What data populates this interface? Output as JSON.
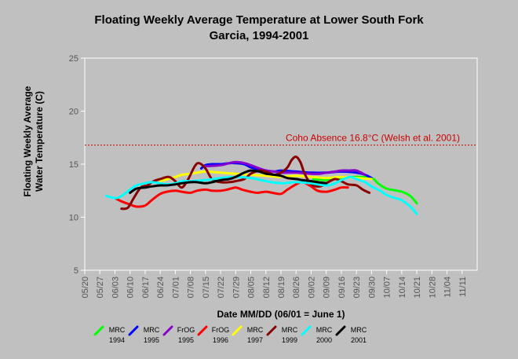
{
  "chart_data": {
    "type": "line",
    "title_line1": "Floating Weekly Average Temperature at Lower South Fork",
    "title_line2": "Garcia, 1994-2001",
    "ylabel_line1": "Floating Weekly Average",
    "ylabel_line2": "Water Temperature (C)",
    "xlabel": "Date MM/DD (06/01 = June 1)",
    "ylim": [
      5,
      25
    ],
    "yticks": [
      5,
      10,
      15,
      20,
      25
    ],
    "xlim": [
      -12,
      170
    ],
    "xticks": [
      {
        "label": "05/20",
        "day": -12
      },
      {
        "label": "05/27",
        "day": -5
      },
      {
        "label": "06/03",
        "day": 2
      },
      {
        "label": "06/10",
        "day": 9
      },
      {
        "label": "06/17",
        "day": 16
      },
      {
        "label": "06/24",
        "day": 23
      },
      {
        "label": "07/01",
        "day": 30
      },
      {
        "label": "07/08",
        "day": 37
      },
      {
        "label": "07/15",
        "day": 44
      },
      {
        "label": "07/22",
        "day": 51
      },
      {
        "label": "07/29",
        "day": 58
      },
      {
        "label": "08/05",
        "day": 65
      },
      {
        "label": "08/12",
        "day": 72
      },
      {
        "label": "08/19",
        "day": 79
      },
      {
        "label": "08/26",
        "day": 86
      },
      {
        "label": "09/02",
        "day": 93
      },
      {
        "label": "09/09",
        "day": 100
      },
      {
        "label": "09/16",
        "day": 107
      },
      {
        "label": "09/23",
        "day": 114
      },
      {
        "label": "09/30",
        "day": 121
      },
      {
        "label": "10/07",
        "day": 128
      },
      {
        "label": "10/14",
        "day": 135
      },
      {
        "label": "10/21",
        "day": 142
      },
      {
        "label": "10/28",
        "day": 149
      },
      {
        "label": "11/04",
        "day": 156
      },
      {
        "label": "11/11",
        "day": 163
      }
    ],
    "reference_line": {
      "value": 16.8,
      "label": "Coho Absence 16.8°C (Welsh et al. 2001)",
      "color": "#cc0000"
    },
    "series": [
      {
        "name": "MRC",
        "year": "1994",
        "color": "#00ff00",
        "x": [
          94,
          100,
          107,
          114,
          121,
          124,
          128,
          135,
          139,
          142
        ],
        "y": [
          13.6,
          13.5,
          13.7,
          13.8,
          13.7,
          13.2,
          12.7,
          12.4,
          12.0,
          11.3
        ]
      },
      {
        "name": "MRC",
        "year": "1995",
        "color": "#0000ff",
        "x": [
          42,
          44,
          47,
          51,
          55,
          58,
          62,
          65,
          69,
          72,
          76,
          79,
          86,
          93,
          100,
          107,
          114,
          118,
          121
        ],
        "y": [
          14.6,
          14.9,
          15.0,
          15.0,
          15.1,
          15.1,
          15.0,
          14.7,
          14.5,
          14.4,
          14.3,
          14.4,
          14.3,
          14.2,
          14.2,
          14.3,
          14.2,
          14.0,
          13.7
        ]
      },
      {
        "name": "FrOG",
        "year": "1995",
        "color": "#8800cc",
        "x": [
          44,
          51,
          55,
          58,
          62,
          65,
          69,
          72,
          76,
          79,
          86,
          93,
          97,
          100,
          104,
          107,
          111,
          114,
          118
        ],
        "y": [
          14.8,
          14.9,
          15.1,
          15.2,
          15.1,
          14.9,
          14.6,
          14.4,
          14.3,
          14.2,
          14.2,
          14.1,
          14.1,
          14.2,
          14.3,
          14.4,
          14.4,
          14.4,
          14.0
        ]
      },
      {
        "name": "FrOG",
        "year": "1996",
        "color": "#ff0000",
        "x": [
          2,
          5,
          9,
          12,
          16,
          19,
          23,
          26,
          30,
          33,
          37,
          40,
          44,
          47,
          51,
          54,
          58,
          61,
          65,
          68,
          72,
          75,
          79,
          82,
          86,
          89,
          93,
          96,
          100,
          104,
          107,
          110
        ],
        "y": [
          11.8,
          11.5,
          11.2,
          11.0,
          11.1,
          11.6,
          12.2,
          12.4,
          12.5,
          12.4,
          12.3,
          12.5,
          12.6,
          12.5,
          12.5,
          12.6,
          12.8,
          12.6,
          12.4,
          12.3,
          12.4,
          12.3,
          12.2,
          12.6,
          13.1,
          13.3,
          12.9,
          12.5,
          12.4,
          12.6,
          12.8,
          12.8
        ]
      },
      {
        "name": "MRC",
        "year": "1997",
        "color": "#ffff00",
        "x": [
          23,
          30,
          33,
          37,
          40,
          44,
          51,
          58,
          65,
          72,
          79,
          86,
          93,
          100,
          107,
          114,
          121
        ],
        "y": [
          13.4,
          13.8,
          14.0,
          14.1,
          14.2,
          14.3,
          14.2,
          14.1,
          14.0,
          13.9,
          13.8,
          13.9,
          13.8,
          13.7,
          13.8,
          13.7,
          13.6
        ]
      },
      {
        "name": "MRC",
        "year": "1999",
        "color": "#880000",
        "x": [
          5,
          8,
          11,
          14,
          17,
          20,
          23,
          27,
          30,
          33,
          36,
          39,
          41,
          44,
          47,
          51,
          55,
          58,
          62,
          65,
          69,
          72,
          76,
          79,
          82,
          84,
          86,
          88,
          90,
          93,
          97,
          100,
          104,
          107,
          110,
          114,
          117,
          120
        ],
        "y": [
          10.8,
          10.9,
          11.9,
          12.8,
          13.0,
          13.4,
          13.6,
          13.8,
          13.4,
          12.8,
          13.6,
          14.8,
          15.1,
          14.6,
          13.6,
          13.3,
          13.3,
          13.4,
          13.6,
          14.1,
          14.4,
          14.3,
          14.0,
          14.2,
          14.7,
          15.4,
          15.7,
          15.2,
          14.1,
          13.1,
          12.9,
          13.2,
          13.6,
          13.4,
          13.1,
          13.0,
          12.6,
          12.3
        ]
      },
      {
        "name": "MRC",
        "year": "2000",
        "color": "#00ffff",
        "x": [
          -2,
          2,
          5,
          9,
          12,
          16,
          19,
          23,
          26,
          30,
          33,
          37,
          44,
          51,
          58,
          65,
          72,
          79,
          86,
          93,
          100,
          104,
          107,
          111,
          114,
          118,
          121,
          125,
          128,
          132,
          135,
          139,
          142
        ],
        "y": [
          12.0,
          11.8,
          12.0,
          12.6,
          13.0,
          13.2,
          13.3,
          13.2,
          13.1,
          13.2,
          13.4,
          13.4,
          13.5,
          13.7,
          13.8,
          13.7,
          13.4,
          13.2,
          13.3,
          13.2,
          13.0,
          13.2,
          13.5,
          13.8,
          13.6,
          13.3,
          12.9,
          12.5,
          12.1,
          11.8,
          11.6,
          11.0,
          10.3
        ]
      },
      {
        "name": "MRC",
        "year": "2001",
        "color": "#000000",
        "x": [
          9,
          12,
          16,
          19,
          23,
          26,
          30,
          33,
          37,
          40,
          44,
          47,
          51,
          55,
          58,
          62,
          65,
          69,
          72,
          76,
          79,
          82,
          86,
          89,
          93,
          96,
          100
        ],
        "y": [
          12.3,
          12.7,
          12.8,
          12.9,
          13.0,
          13.0,
          13.1,
          13.2,
          13.3,
          13.3,
          13.2,
          13.3,
          13.5,
          13.6,
          13.8,
          14.2,
          14.4,
          14.3,
          14.1,
          14.0,
          13.9,
          13.7,
          13.6,
          13.5,
          13.4,
          13.3,
          13.2
        ]
      }
    ]
  }
}
